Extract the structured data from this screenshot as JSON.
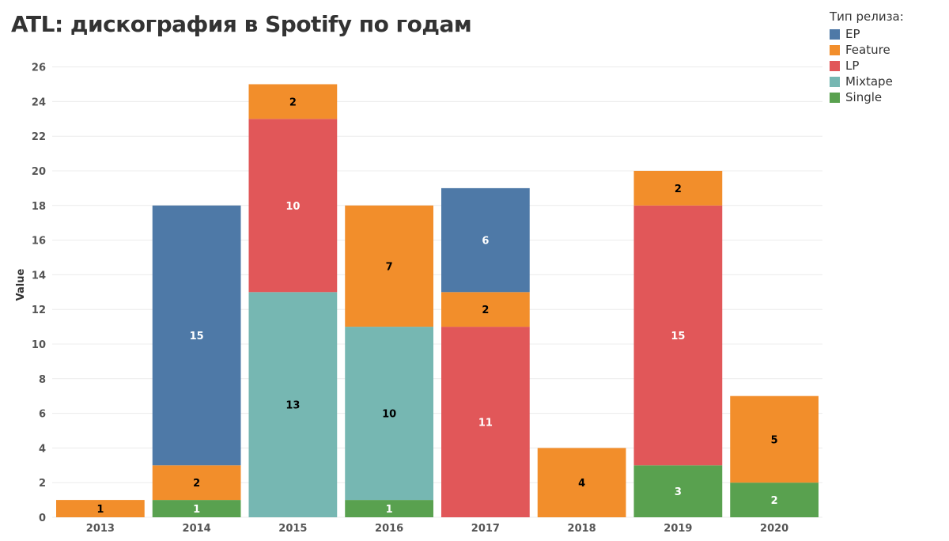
{
  "chart_data": {
    "type": "bar",
    "stacked": true,
    "title": "ATL: дискография в Spotify по годам",
    "xlabel": "",
    "ylabel": "Value",
    "ylim": [
      0,
      26
    ],
    "yticks": [
      0,
      2,
      4,
      6,
      8,
      10,
      12,
      14,
      16,
      18,
      20,
      22,
      24,
      26
    ],
    "grid": true,
    "categories": [
      "2013",
      "2014",
      "2015",
      "2016",
      "2017",
      "2018",
      "2019",
      "2020"
    ],
    "legend_title": "Тип релиза:",
    "legend_position": "top-right",
    "stack_order": [
      "Single",
      "Feature",
      "Mixtape",
      "LP",
      "EP",
      "Feature"
    ],
    "series": [
      {
        "name": "EP",
        "color": "#4e79a7",
        "label_color": "#ffffff",
        "values": [
          0,
          15,
          0,
          0,
          6,
          0,
          0,
          0
        ]
      },
      {
        "name": "Feature",
        "color": "#f28e2b",
        "label_color": "#000000",
        "values": [
          1,
          2,
          2,
          7,
          2,
          4,
          2,
          5
        ]
      },
      {
        "name": "LP",
        "color": "#e15759",
        "label_color": "#ffffff",
        "values": [
          0,
          0,
          10,
          0,
          11,
          0,
          15,
          0
        ]
      },
      {
        "name": "Mixtape",
        "color": "#76b7b2",
        "label_color": "#000000",
        "values": [
          0,
          0,
          13,
          10,
          0,
          0,
          0,
          0
        ]
      },
      {
        "name": "Single",
        "color": "#59a14f",
        "label_color": "#ffffff",
        "values": [
          0,
          1,
          0,
          1,
          0,
          0,
          3,
          2
        ]
      }
    ],
    "stack_segments": [
      [
        {
          "series": "Feature",
          "value": 1
        }
      ],
      [
        {
          "series": "Single",
          "value": 1
        },
        {
          "series": "Feature",
          "value": 2
        },
        {
          "series": "EP",
          "value": 15
        }
      ],
      [
        {
          "series": "Mixtape",
          "value": 13
        },
        {
          "series": "LP",
          "value": 10
        },
        {
          "series": "Feature",
          "value": 2
        }
      ],
      [
        {
          "series": "Single",
          "value": 1
        },
        {
          "series": "Mixtape",
          "value": 10
        },
        {
          "series": "Feature",
          "value": 7
        }
      ],
      [
        {
          "series": "LP",
          "value": 11
        },
        {
          "series": "Feature",
          "value": 2
        },
        {
          "series": "EP",
          "value": 6
        }
      ],
      [
        {
          "series": "Feature",
          "value": 4
        }
      ],
      [
        {
          "series": "Single",
          "value": 3
        },
        {
          "series": "LP",
          "value": 15
        },
        {
          "series": "Feature",
          "value": 2
        }
      ],
      [
        {
          "series": "Single",
          "value": 2
        },
        {
          "series": "Feature",
          "value": 5
        }
      ]
    ]
  }
}
